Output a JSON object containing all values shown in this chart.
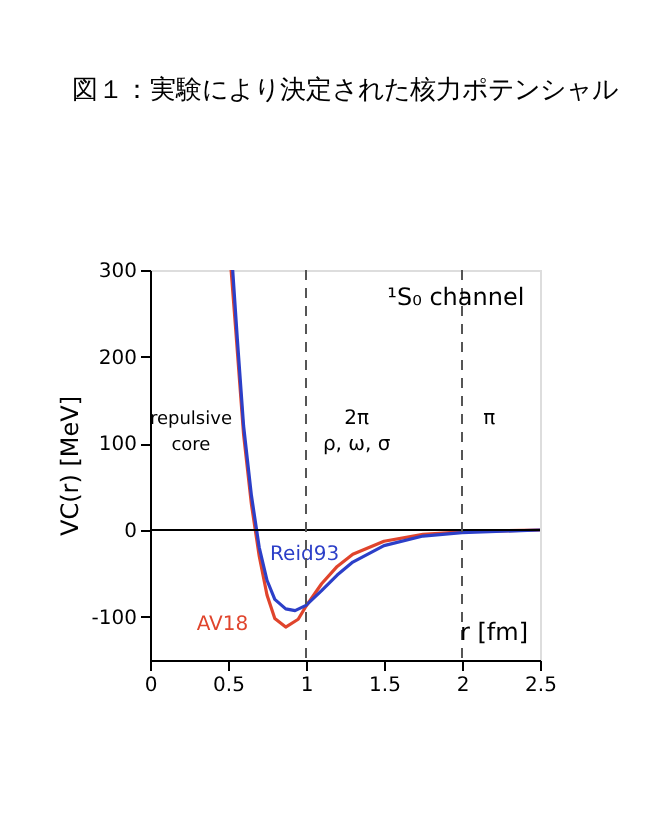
{
  "chart_data": {
    "type": "line",
    "title": "図１：実験により決定された核力ポテンシャル",
    "xlabel": "r [fm]",
    "ylabel": "VC(r) [MeV]",
    "series": [
      {
        "name": "AV18",
        "color": "#e0442c",
        "x": [
          0.52,
          0.55,
          0.6,
          0.65,
          0.7,
          0.75,
          0.8,
          0.87,
          0.95,
          1.0,
          1.1,
          1.2,
          1.3,
          1.5,
          1.75,
          2.0,
          2.5
        ],
        "values": [
          300,
          230,
          110,
          30,
          -30,
          -75,
          -102,
          -112,
          -103,
          -88,
          -62,
          -42,
          -28,
          -13,
          -5,
          -2,
          0
        ]
      },
      {
        "name": "Reid93",
        "color": "#2c3fc8",
        "x": [
          0.53,
          0.56,
          0.6,
          0.65,
          0.7,
          0.75,
          0.8,
          0.87,
          0.93,
          1.0,
          1.1,
          1.2,
          1.3,
          1.5,
          1.75,
          2.0,
          2.5
        ],
        "values": [
          300,
          220,
          120,
          40,
          -20,
          -58,
          -80,
          -91,
          -93,
          -87,
          -70,
          -52,
          -37,
          -18,
          -7,
          -3,
          0
        ]
      }
    ],
    "xlim": [
      0,
      2.5
    ],
    "xticks": [
      0,
      0.5,
      1,
      1.5,
      2,
      2.5
    ],
    "ylim": [
      -150,
      300
    ],
    "yticks": [
      -100,
      0,
      100,
      200,
      300
    ],
    "ref_lines": [
      {
        "axis": "y",
        "value": 0,
        "color": "#000000",
        "line_style": "solid"
      },
      {
        "axis": "x",
        "value": 1,
        "color": "#555555",
        "line_style": "dashed"
      },
      {
        "axis": "x",
        "value": 2,
        "color": "#555555",
        "line_style": "dashed"
      }
    ],
    "annotations": [
      "¹S₀ channel",
      "repulsive\ncore",
      "2π\nρ, ω, σ",
      "π"
    ],
    "grid": false,
    "line_style": "solid",
    "marker": "none"
  }
}
